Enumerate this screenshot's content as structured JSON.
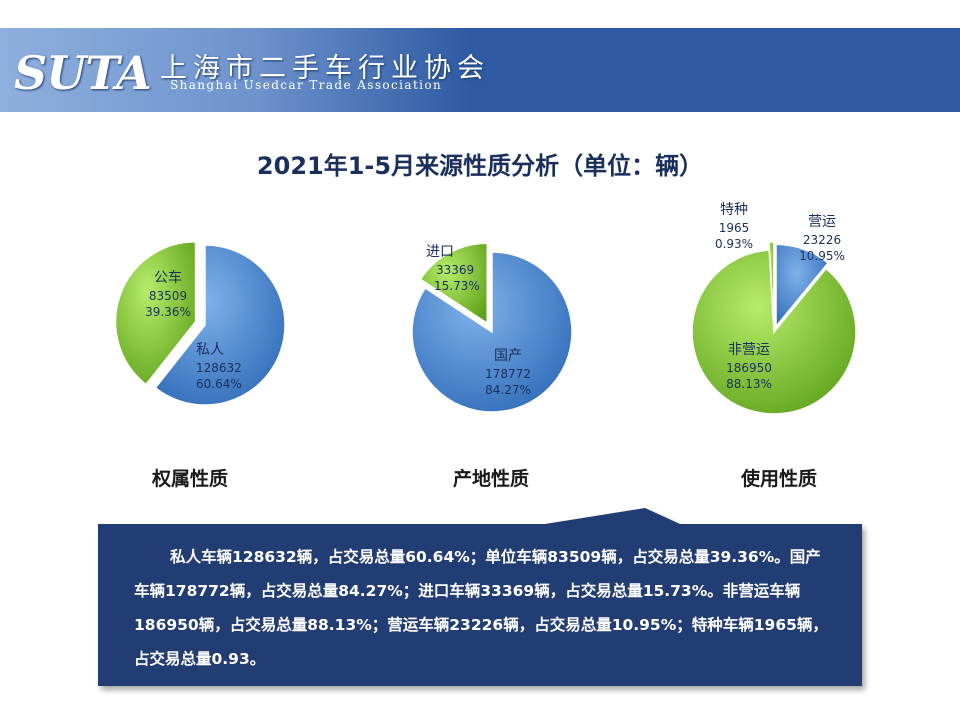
{
  "header": {
    "logo": "SUTA",
    "org_cn": "上海市二手车行业协会",
    "org_en": "Shanghai Usedcar Trade Association"
  },
  "title": "2021年1-5月来源性质分析（单位：辆）",
  "colors": {
    "blue": "#4a86cf",
    "green": "#88cc3a",
    "header": "#2e5aa3",
    "box": "#233e73"
  },
  "chart_data": [
    {
      "type": "pie",
      "caption": "权属性质",
      "slices": [
        {
          "name": "私人",
          "value": 128632,
          "percent": "60.64%",
          "color": "#4a86cf"
        },
        {
          "name": "公车",
          "value": 83509,
          "percent": "39.36%",
          "color": "#88cc3a"
        }
      ]
    },
    {
      "type": "pie",
      "caption": "产地性质",
      "slices": [
        {
          "name": "国产",
          "value": 178772,
          "percent": "84.27%",
          "color": "#4a86cf"
        },
        {
          "name": "进口",
          "value": 33369,
          "percent": "15.73%",
          "color": "#88cc3a"
        }
      ]
    },
    {
      "type": "pie",
      "caption": "使用性质",
      "slices": [
        {
          "name": "营运",
          "value": 23226,
          "percent": "10.95%",
          "color": "#4a86cf"
        },
        {
          "name": "非营运",
          "value": 186950,
          "percent": "88.13%",
          "color": "#88cc3a"
        },
        {
          "name": "特种",
          "value": 1965,
          "percent": "0.93%",
          "color": "#88cc3a"
        }
      ]
    }
  ],
  "summary": "私人车辆128632辆，占交易总量60.64%；单位车辆83509辆，占交易总量39.36%。国产车辆178772辆，占交易总量84.27%；进口车辆33369辆，占交易总量15.73%。非营运车辆186950辆，占交易总量88.13%；营运车辆23226辆，占交易总量10.95%；特种车辆1965辆，占交易总量0.93。"
}
